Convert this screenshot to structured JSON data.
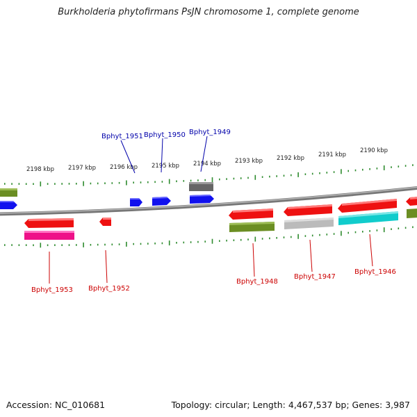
{
  "title": "Burkholderia phytofirmans PsJN chromosome 1, complete genome",
  "footer": {
    "accession": "Accession: NC_010681",
    "stats": "Topology: circular; Length: 4,467,537 bp; Genes: 3,987"
  },
  "colors": {
    "backbone": "#8f8f8f",
    "ticks": "#2e8b2e",
    "label_upper": "#0000aa",
    "label_lower": "#cc0000",
    "red": "#ee1111",
    "blue": "#1111ee",
    "olive": "#6b8e23",
    "dark_gray": "#666666",
    "light_gray": "#bbbbbb",
    "magenta": "#ee1188",
    "cyan": "#11cccc"
  },
  "scale": {
    "kbp_labels": [
      "2198 kbp",
      "2197 kbp",
      "2196 kbp",
      "2195 kbp",
      "2194 kbp",
      "2193 kbp",
      "2192 kbp",
      "2191 kbp",
      "2190 kbp"
    ]
  },
  "genes": {
    "upper_labels": [
      "Bphyt_1951",
      "Bphyt_1950",
      "Bphyt_1949"
    ],
    "lower_labels": [
      "Bphyt_1953",
      "Bphyt_1952",
      "Bphyt_1948",
      "Bphyt_1947",
      "Bphyt_1946"
    ]
  }
}
